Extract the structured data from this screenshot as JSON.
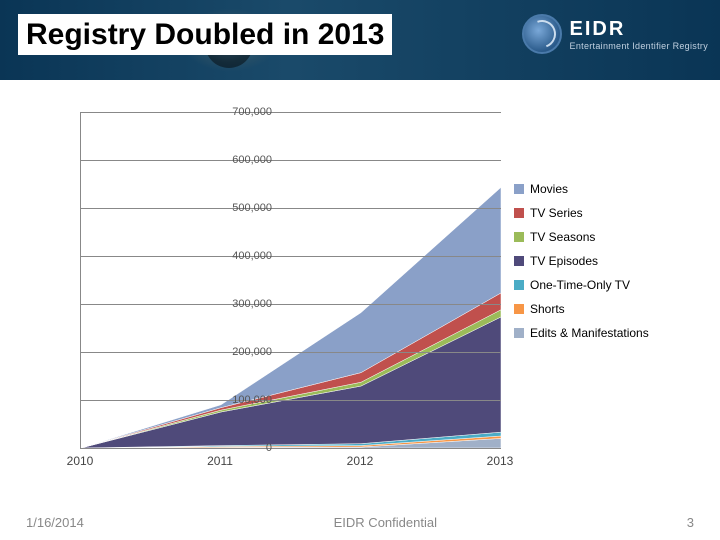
{
  "header": {
    "title": "Registry Doubled in 2013",
    "logo_main": "EIDR",
    "logo_sub": "Entertainment Identifier Registry"
  },
  "chart": {
    "type": "area",
    "background_color": "#ffffff",
    "grid_color": "#888888",
    "xlim": [
      2010,
      2013
    ],
    "ylim": [
      0,
      700000
    ],
    "ytick_step": 100000,
    "y_ticks": [
      "0",
      "100,000",
      "200,000",
      "300,000",
      "400,000",
      "500,000",
      "600,000",
      "700,000"
    ],
    "x_ticks": [
      "2010",
      "2011",
      "2012",
      "2013"
    ],
    "label_fontsize": 11,
    "series": [
      {
        "name": "Movies",
        "color": "#8aa0c8",
        "values": [
          0,
          6000,
          125000,
          220000
        ]
      },
      {
        "name": "TV Series",
        "color": "#c0504d",
        "values": [
          0,
          5000,
          20000,
          35000
        ]
      },
      {
        "name": "TV Seasons",
        "color": "#9bbb59",
        "values": [
          0,
          4000,
          8000,
          15000
        ]
      },
      {
        "name": "TV Episodes",
        "color": "#4f4a7a",
        "values": [
          0,
          70000,
          120000,
          240000
        ]
      },
      {
        "name": "One-Time-Only TV",
        "color": "#4bacc6",
        "values": [
          0,
          2000,
          4000,
          8000
        ]
      },
      {
        "name": "Shorts",
        "color": "#f79646",
        "values": [
          0,
          2000,
          3000,
          5000
        ]
      },
      {
        "name": "Edits & Manifestations",
        "color": "#a0b0c8",
        "values": [
          0,
          1000,
          2000,
          20000
        ]
      }
    ]
  },
  "footer": {
    "date": "1/16/2014",
    "center": "EIDR Confidential",
    "page": "3"
  }
}
